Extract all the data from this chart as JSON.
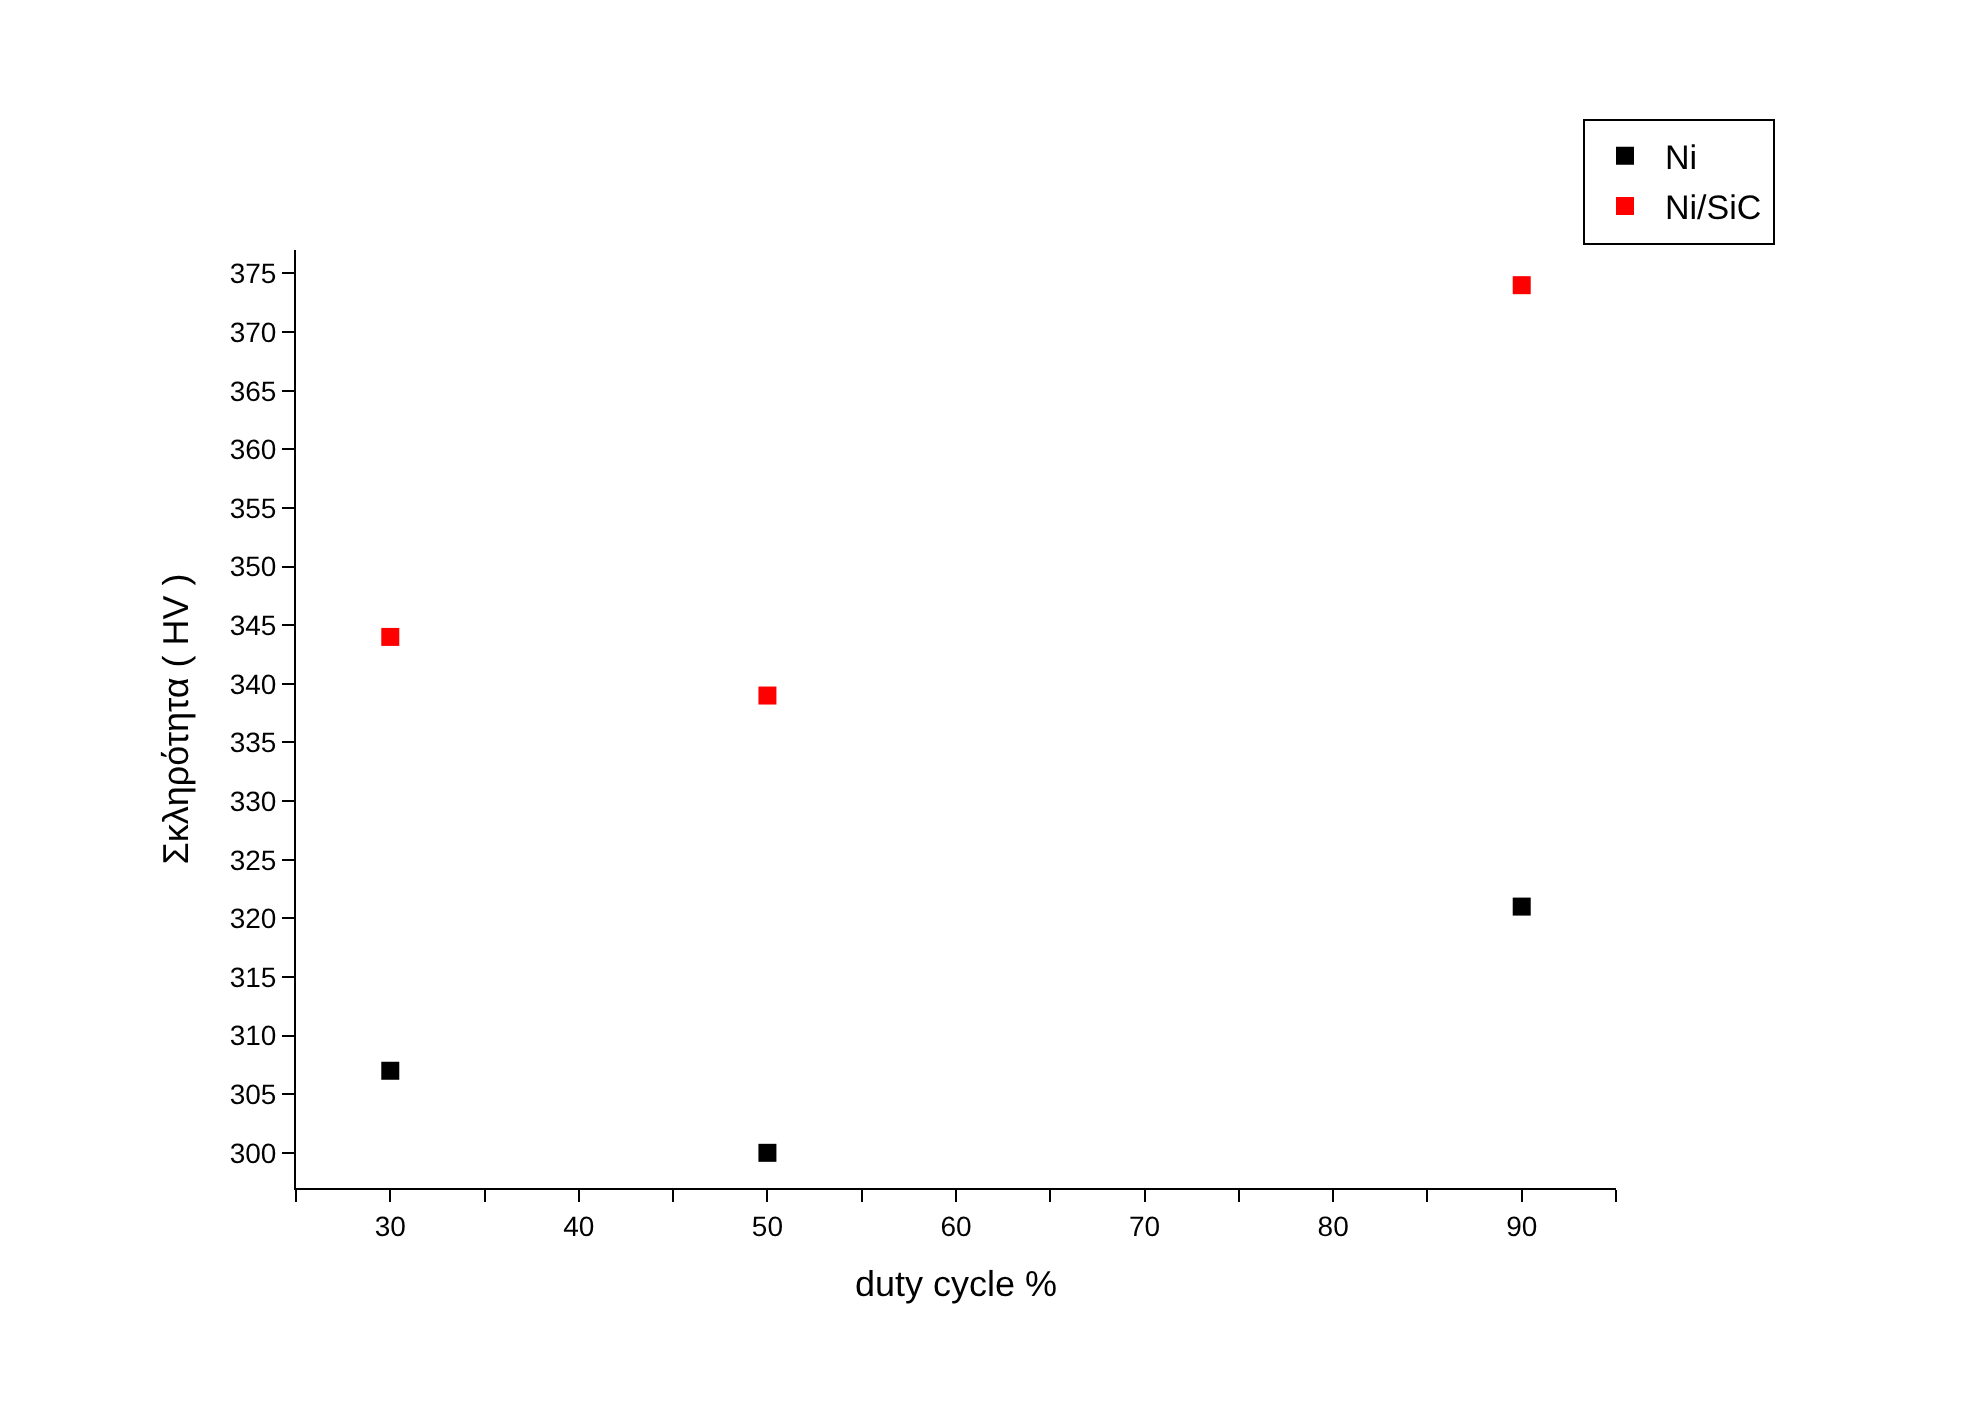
{
  "chart_data": {
    "type": "scatter",
    "xlabel": "duty cycle %",
    "ylabel": "Σκληρότητα ( HV )",
    "x": [
      30,
      50,
      90
    ],
    "series": [
      {
        "name": "Ni",
        "color": "#000000",
        "values": [
          307,
          300,
          321
        ]
      },
      {
        "name": "Ni/SiC",
        "color": "#ff0000",
        "values": [
          344,
          339,
          374
        ]
      }
    ],
    "xlim": [
      25,
      95
    ],
    "xticks": [
      {
        "value": 25,
        "label": null
      },
      30,
      {
        "value": 35,
        "label": null
      },
      40,
      {
        "value": 45,
        "label": null
      },
      50,
      {
        "value": 55,
        "label": null
      },
      60,
      {
        "value": 65,
        "label": null
      },
      70,
      {
        "value": 75,
        "label": null
      },
      80,
      {
        "value": 85,
        "label": null
      },
      90,
      {
        "value": 95,
        "label": null
      }
    ],
    "ylim": [
      297,
      377
    ],
    "yticks": [
      300,
      305,
      310,
      315,
      320,
      325,
      330,
      335,
      340,
      345,
      350,
      355,
      360,
      365,
      370,
      375
    ],
    "marker": "square",
    "grid": false,
    "legend": "top right"
  }
}
